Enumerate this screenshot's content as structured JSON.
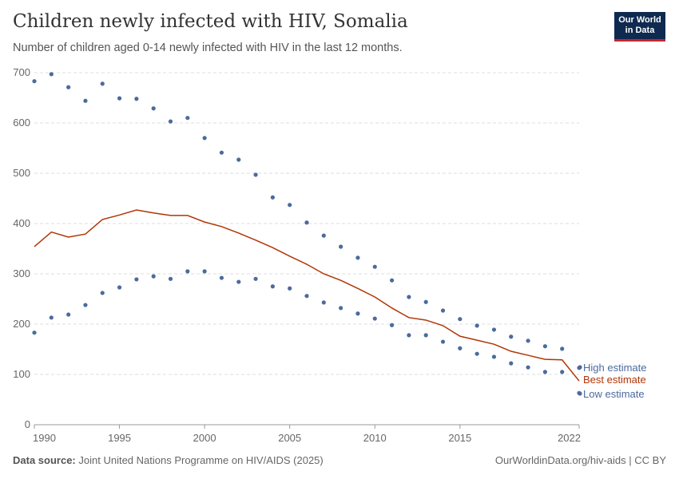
{
  "header": {
    "title": "Children newly infected with HIV, Somalia",
    "subtitle": "Number of children aged 0-14 newly infected with HIV in the last 12 months.",
    "logo": "Our World in Data"
  },
  "footer": {
    "source_label": "Data source:",
    "source": "Joint United Nations Programme on HIV/AIDS (2025)",
    "link": "OurWorldinData.org/hiv-aids | CC BY"
  },
  "chart_data": {
    "type": "line",
    "x": [
      1990,
      1991,
      1992,
      1993,
      1994,
      1995,
      1996,
      1997,
      1998,
      1999,
      2000,
      2001,
      2002,
      2003,
      2004,
      2005,
      2006,
      2007,
      2008,
      2009,
      2010,
      2011,
      2012,
      2013,
      2014,
      2015,
      2016,
      2017,
      2018,
      2019,
      2020,
      2021,
      2022
    ],
    "xlim": [
      1990,
      2022
    ],
    "ylim": [
      0,
      700
    ],
    "xticks": [
      "1990",
      "1995",
      "2000",
      "2005",
      "2010",
      "2015",
      "2022"
    ],
    "yticks": [
      "0",
      "100",
      "200",
      "300",
      "400",
      "500",
      "600",
      "700"
    ],
    "grid": true,
    "legend": "right",
    "series": [
      {
        "name": "High estimate",
        "style": "dots",
        "color": "#4c6a9c",
        "values": [
          683,
          697,
          671,
          644,
          678,
          649,
          648,
          629,
          603,
          610,
          570,
          541,
          527,
          497,
          452,
          437,
          402,
          376,
          354,
          332,
          314,
          287,
          254,
          244,
          227,
          210,
          197,
          189,
          175,
          167,
          156,
          151,
          113
        ]
      },
      {
        "name": "Best estimate",
        "style": "line",
        "color": "#b13507",
        "values": [
          354,
          383,
          373,
          379,
          408,
          417,
          427,
          421,
          416,
          416,
          403,
          394,
          381,
          367,
          352,
          335,
          319,
          300,
          287,
          271,
          254,
          232,
          213,
          208,
          197,
          176,
          168,
          160,
          146,
          138,
          130,
          129,
          87
        ]
      },
      {
        "name": "Low estimate",
        "style": "dots",
        "color": "#4c6a9c",
        "values": [
          183,
          213,
          219,
          238,
          262,
          273,
          289,
          295,
          290,
          305,
          305,
          292,
          284,
          290,
          275,
          271,
          256,
          243,
          232,
          221,
          211,
          198,
          178,
          178,
          165,
          152,
          141,
          135,
          122,
          114,
          105,
          105,
          63
        ]
      }
    ]
  }
}
